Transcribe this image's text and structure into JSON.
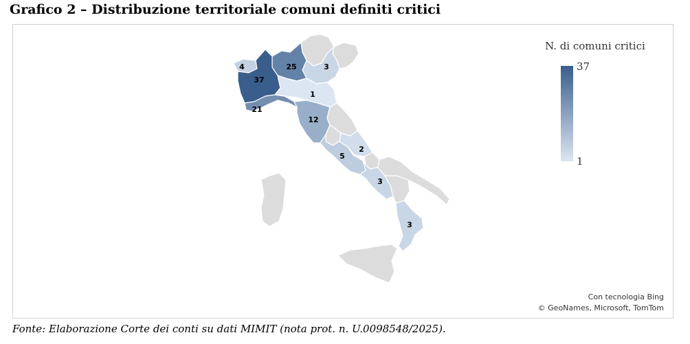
{
  "title": "Grafico 2 – Distribuzione territoriale comuni definiti critici",
  "legend": {
    "title": "N. di comuni critici",
    "max_label": "37",
    "min_label": "1",
    "color_low": "#dce6f2",
    "color_high": "#3a5e8c"
  },
  "map_credits": {
    "line1": "Con tecnologia Bing",
    "line2": "© GeoNames, Microsoft, TomTom"
  },
  "source": "Fonte: Elaborazione Corte dei conti su dati MIMIT (nota prot. n. U.0098548/2025).",
  "colors": {
    "no_data": "#dcdcdc",
    "border": "#ffffff"
  },
  "regions": [
    {
      "name": "Valle d'Aosta",
      "value": 4
    },
    {
      "name": "Piemonte",
      "value": 37
    },
    {
      "name": "Lombardia",
      "value": 25
    },
    {
      "name": "Veneto",
      "value": 3
    },
    {
      "name": "Emilia-Romagna",
      "value": 1
    },
    {
      "name": "Liguria",
      "value": 21
    },
    {
      "name": "Toscana",
      "value": 12
    },
    {
      "name": "Lazio",
      "value": 5
    },
    {
      "name": "Abruzzo",
      "value": 2
    },
    {
      "name": "Campania",
      "value": 3
    },
    {
      "name": "Calabria",
      "value": 3
    },
    {
      "name": "Trentino-Alto Adige",
      "value": null
    },
    {
      "name": "Friuli-Venezia Giulia",
      "value": null
    },
    {
      "name": "Marche",
      "value": null
    },
    {
      "name": "Umbria",
      "value": null
    },
    {
      "name": "Molise",
      "value": null
    },
    {
      "name": "Puglia",
      "value": null
    },
    {
      "name": "Basilicata",
      "value": null
    },
    {
      "name": "Sicilia",
      "value": null
    },
    {
      "name": "Sardegna",
      "value": null
    }
  ]
}
